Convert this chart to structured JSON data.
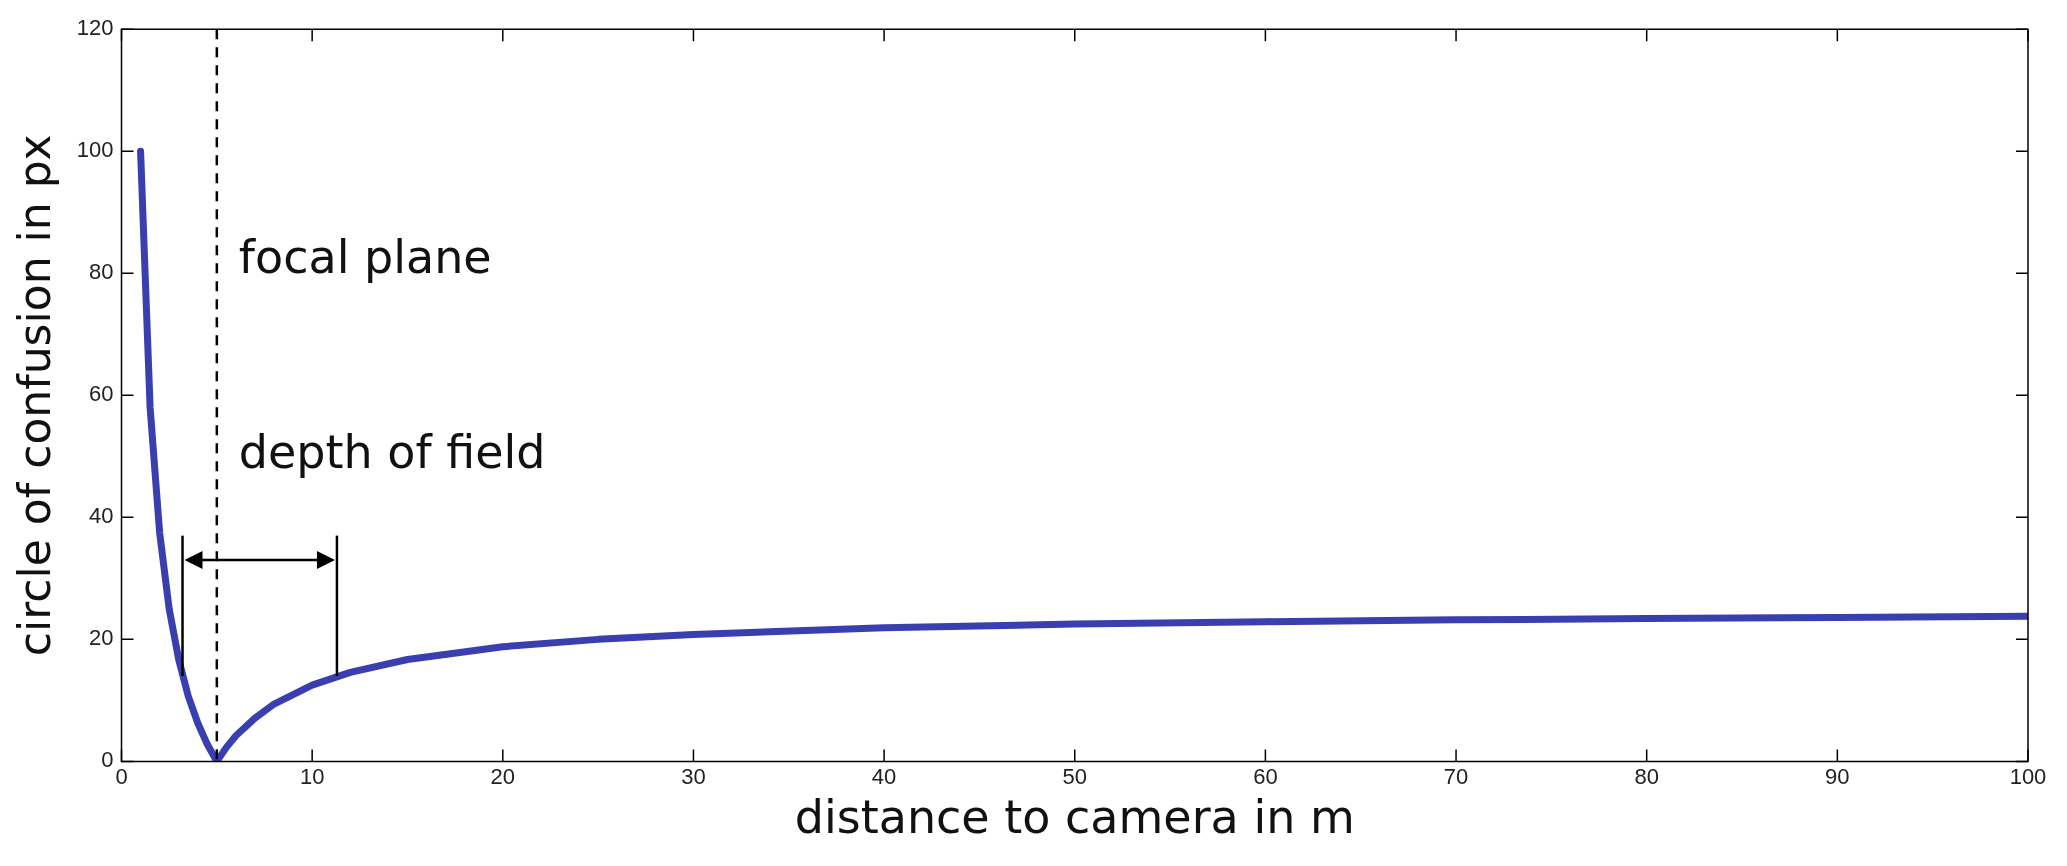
{
  "chart_data": {
    "type": "line",
    "xlabel": "distance to camera in m",
    "ylabel": "circle of confusion in px",
    "series": [
      {
        "color": "#3a3fb0",
        "x": [
          1,
          1.5,
          2,
          2.5,
          3,
          3.5,
          4,
          4.5,
          5,
          5.5,
          6,
          7,
          8,
          10,
          12,
          15,
          20,
          25,
          30,
          40,
          50,
          60,
          70,
          80,
          90,
          100
        ],
        "values": [
          100,
          58,
          37.5,
          25,
          16.7,
          10.7,
          6.3,
          2.8,
          0,
          2.3,
          4.2,
          7.1,
          9.4,
          12.5,
          14.6,
          16.7,
          18.8,
          20,
          20.8,
          21.9,
          22.5,
          22.9,
          23.2,
          23.4,
          23.6,
          23.8
        ]
      }
    ],
    "xlim": [
      0,
      100
    ],
    "xticks": [
      0,
      10,
      20,
      30,
      40,
      50,
      60,
      70,
      80,
      90,
      100
    ],
    "ylim": [
      0,
      120
    ],
    "yticks": [
      0,
      20,
      40,
      60,
      80,
      100,
      120
    ],
    "grid": false,
    "legend": false,
    "marker": "none",
    "line_style": "solid",
    "ref_lines": [
      {
        "axis": "x",
        "value": 5,
        "label": "focal plane",
        "line_style": "dashed",
        "color": "#000000"
      },
      {
        "axis": "x",
        "value": 3.2,
        "line_style": "solid",
        "color": "#000000"
      },
      {
        "axis": "x",
        "value": 11.3,
        "line_style": "solid",
        "color": "#000000"
      }
    ],
    "annotations": [
      "depth of field"
    ]
  }
}
